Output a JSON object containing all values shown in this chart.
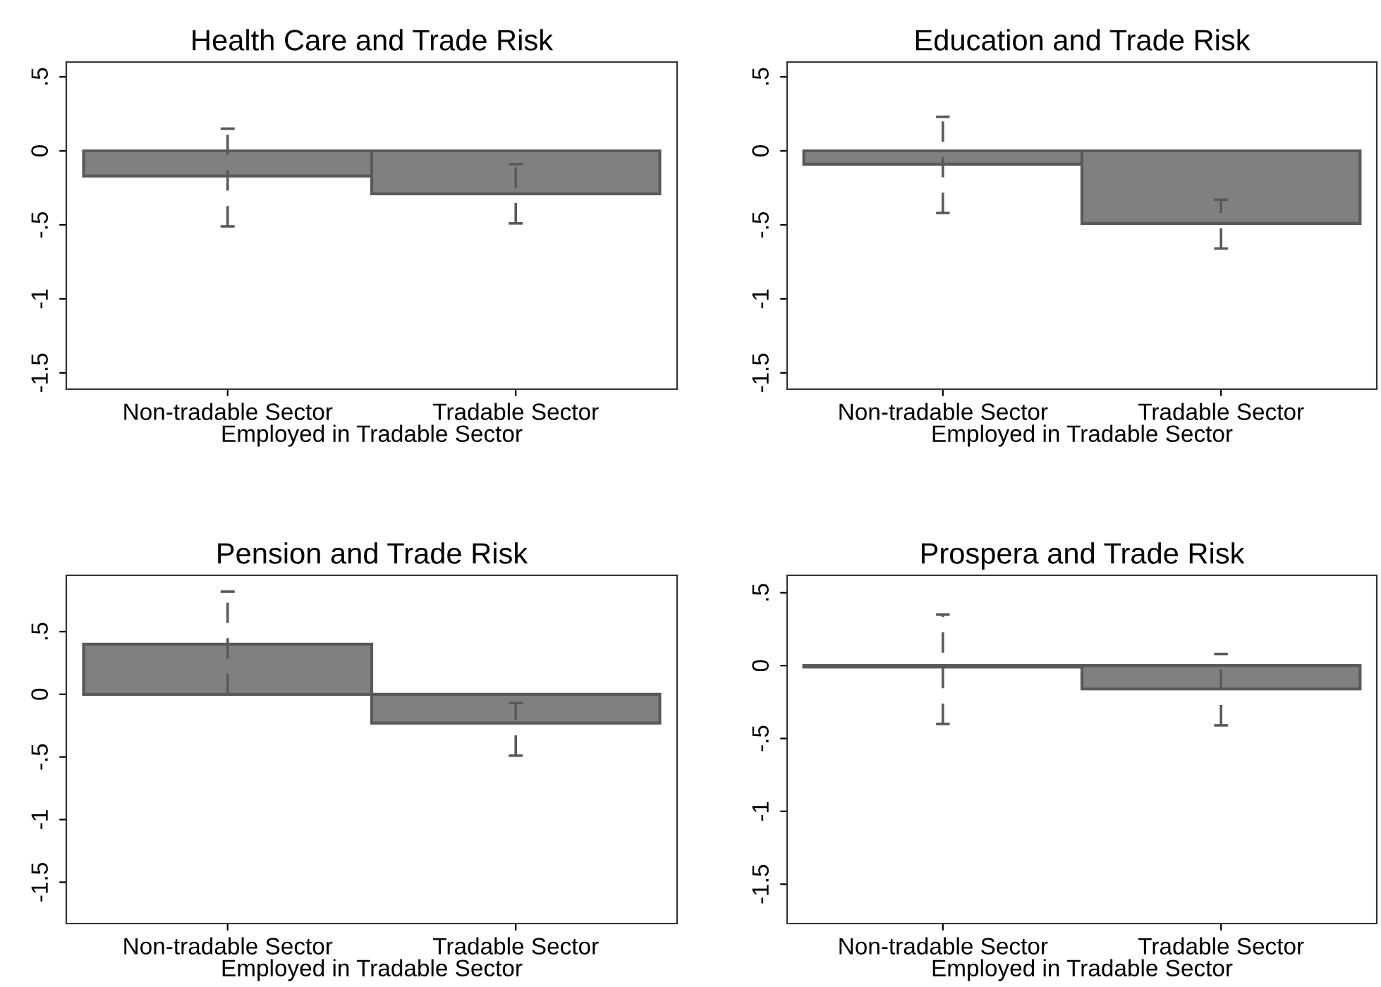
{
  "chart_data": [
    {
      "type": "bar",
      "title": "Health Care and Trade Risk",
      "xlabel": "Employed in Tradable Sector",
      "categories": [
        "Non-tradable Sector",
        "Tradable Sector"
      ],
      "values": [
        -0.17,
        -0.29
      ],
      "errors": [
        [
          -0.51,
          0.15
        ],
        [
          -0.49,
          -0.09
        ]
      ],
      "color": "#808080",
      "ylim": [
        -1.61,
        0.6
      ],
      "yticks": [
        {
          "value": 0.5,
          "label": ".5"
        },
        0,
        {
          "value": -0.5,
          "label": "-.5"
        },
        -1,
        {
          "value": -1.5,
          "label": "-1.5"
        }
      ],
      "grid": false,
      "legend": false
    },
    {
      "type": "bar",
      "title": "Education and Trade Risk",
      "xlabel": "Employed in Tradable Sector",
      "categories": [
        "Non-tradable Sector",
        "Tradable Sector"
      ],
      "values": [
        -0.09,
        -0.49
      ],
      "errors": [
        [
          -0.42,
          0.23
        ],
        [
          -0.66,
          -0.33
        ]
      ],
      "color": "#808080",
      "ylim": [
        -1.61,
        0.6
      ],
      "yticks": [
        {
          "value": 0.5,
          "label": ".5"
        },
        0,
        {
          "value": -0.5,
          "label": "-.5"
        },
        -1,
        {
          "value": -1.5,
          "label": "-1.5"
        }
      ],
      "grid": false,
      "legend": false
    },
    {
      "type": "bar",
      "title": "Pension and Trade Risk",
      "xlabel": "Employed in Tradable Sector",
      "categories": [
        "Non-tradable Sector",
        "Tradable Sector"
      ],
      "values": [
        0.4,
        -0.23
      ],
      "errors": [
        [
          0.0,
          0.82
        ],
        [
          -0.49,
          -0.07
        ]
      ],
      "color": "#808080",
      "ylim": [
        -1.83,
        0.95
      ],
      "yticks": [
        {
          "value": 0.5,
          "label": ".5"
        },
        0,
        {
          "value": -0.5,
          "label": "-.5"
        },
        -1,
        {
          "value": -1.5,
          "label": "-1.5"
        }
      ],
      "grid": false,
      "legend": false
    },
    {
      "type": "bar",
      "title": "Prospera and Trade Risk",
      "xlabel": "Employed in Tradable Sector",
      "categories": [
        "Non-tradable Sector",
        "Tradable Sector"
      ],
      "values": [
        -0.01,
        -0.16
      ],
      "errors": [
        [
          -0.4,
          0.35
        ],
        [
          -0.41,
          0.08
        ]
      ],
      "color": "#808080",
      "ylim": [
        -1.77,
        0.62
      ],
      "yticks": [
        {
          "value": 0.5,
          "label": ".5"
        },
        0,
        {
          "value": -0.5,
          "label": "-.5"
        },
        -1,
        {
          "value": -1.5,
          "label": "-1.5"
        }
      ],
      "grid": false,
      "legend": false
    }
  ]
}
